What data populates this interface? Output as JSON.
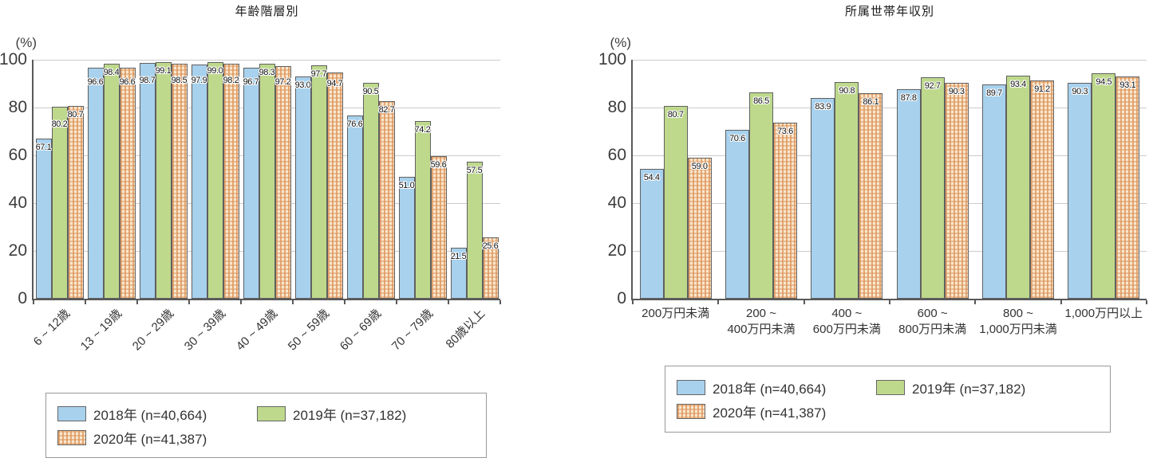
{
  "page": {
    "background": "#ffffff"
  },
  "colors": {
    "series_2018": "#a7d1ed",
    "series_2019": "#bed98c",
    "series_2020_bg": "#f9e7ce",
    "series_2020_line": "#de975e",
    "bar_border": "#606060",
    "axis": "#595959",
    "gridline": "#cbcbcb"
  },
  "chart_data": [
    {
      "type": "bar",
      "title": "年齢階層別",
      "unit": "(%)",
      "ylim": [
        0,
        100
      ],
      "yticks": [
        0,
        20,
        40,
        60,
        80,
        100
      ],
      "grid": "horizontal",
      "legend_position": "bottom",
      "categories": [
        "6 ~ 12歳",
        "13 ~ 19歳",
        "20 ~ 29歳",
        "30 ~ 39歳",
        "40 ~ 49歳",
        "50 ~ 59歳",
        "60 ~ 69歳",
        "70 ~ 79歳",
        "80歳以上"
      ],
      "series": [
        {
          "name": "2018年 (n=40,664)",
          "pattern": "solid",
          "color": "#a7d1ed",
          "values": [
            67.1,
            96.6,
            98.7,
            97.9,
            96.7,
            93.0,
            76.6,
            51.0,
            21.5
          ]
        },
        {
          "name": "2019年 (n=37,182)",
          "pattern": "solid",
          "color": "#bed98c",
          "values": [
            80.2,
            98.4,
            99.1,
            99.0,
            98.3,
            97.7,
            90.5,
            74.2,
            57.5
          ]
        },
        {
          "name": "2020年 (n=41,387)",
          "pattern": "plaid",
          "color": "#f9e7ce",
          "values": [
            80.7,
            96.6,
            98.5,
            98.2,
            97.2,
            94.7,
            82.7,
            59.6,
            25.6
          ]
        }
      ]
    },
    {
      "type": "bar",
      "title": "所属世帯年収別",
      "unit": "(%)",
      "ylim": [
        0,
        100
      ],
      "yticks": [
        0,
        20,
        40,
        60,
        80,
        100
      ],
      "grid": "horizontal",
      "legend_position": "bottom",
      "categories": [
        "200万円未満",
        "200 ~\n400万円未満",
        "400 ~\n600万円未満",
        "600 ~\n800万円未満",
        "800 ~\n1,000万円未満",
        "1,000万円以上"
      ],
      "series": [
        {
          "name": "2018年 (n=40,664)",
          "pattern": "solid",
          "color": "#a7d1ed",
          "values": [
            54.4,
            70.6,
            83.9,
            87.8,
            89.7,
            90.3
          ]
        },
        {
          "name": "2019年 (n=37,182)",
          "pattern": "solid",
          "color": "#bed98c",
          "values": [
            80.7,
            86.5,
            90.8,
            92.7,
            93.4,
            94.5
          ]
        },
        {
          "name": "2020年 (n=41,387)",
          "pattern": "plaid",
          "color": "#f9e7ce",
          "values": [
            59.0,
            73.6,
            86.1,
            90.3,
            91.2,
            93.1
          ]
        }
      ]
    }
  ]
}
